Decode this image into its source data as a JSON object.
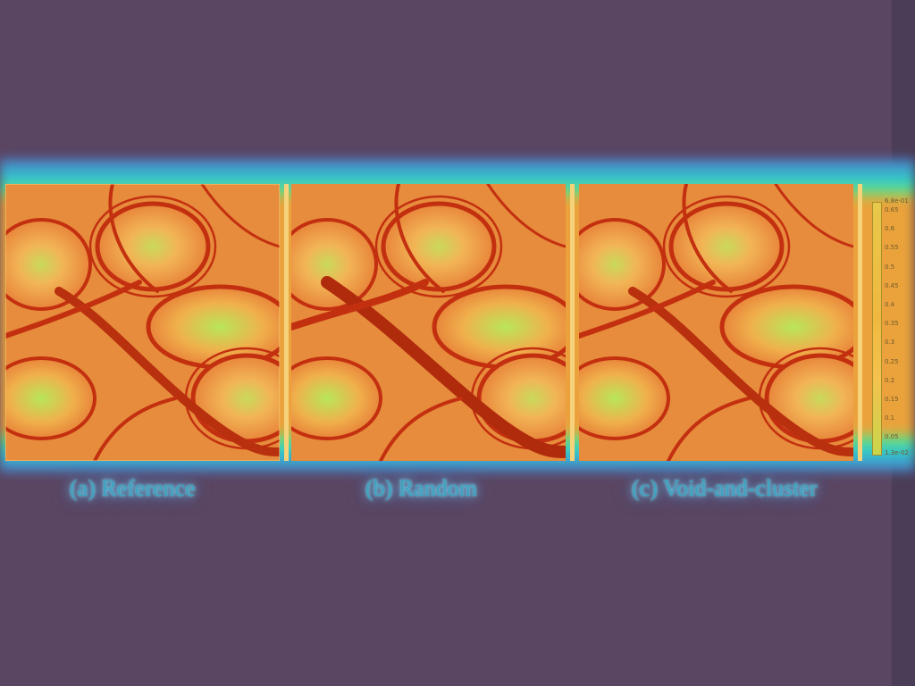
{
  "captions": {
    "a": "(a) Reference",
    "b": "(b) Random",
    "c": "(c) Void-and-cluster"
  },
  "colorbar": {
    "max_label": "6.8e-01",
    "min_label": "1.3e-02",
    "ticks": [
      "0.65",
      "0.6",
      "0.55",
      "0.5",
      "0.45",
      "0.4",
      "0.35",
      "0.3",
      "0.25",
      "0.2",
      "0.15",
      "0.1",
      "0.05"
    ]
  },
  "colors": {
    "background": "#5a4562",
    "vortex_core": "#f3b556",
    "filament": "#c8300f",
    "highlight": "#bde35a"
  }
}
